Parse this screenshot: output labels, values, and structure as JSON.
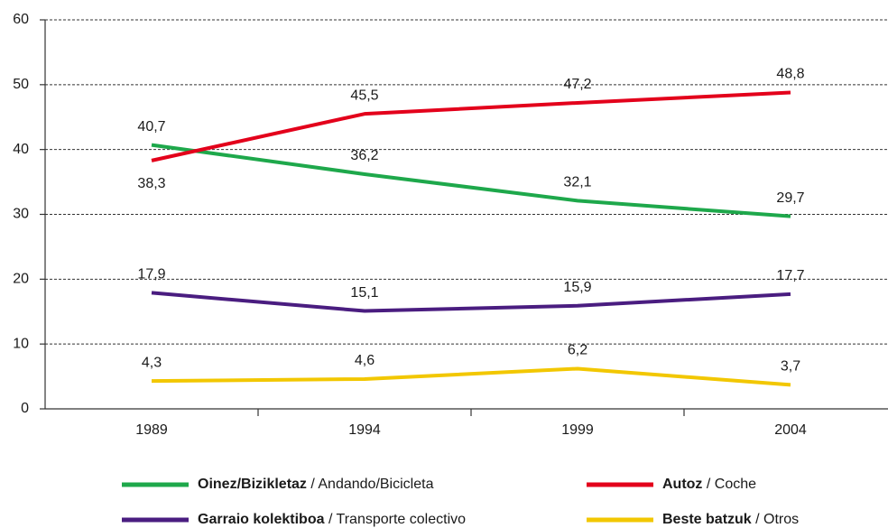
{
  "chart_data": {
    "type": "line",
    "categories": [
      "1989",
      "1994",
      "1999",
      "2004"
    ],
    "series": [
      {
        "name": "Oinez/Bizikletaz / Andando/Bicicleta",
        "color": "#1ea84b",
        "values": [
          40.7,
          36.2,
          32.1,
          29.7
        ],
        "value_labels": [
          "40,7",
          "36,2",
          "32,1",
          "29,7"
        ]
      },
      {
        "name": "Autoz / Coche",
        "color": "#e3001b",
        "values": [
          38.3,
          45.5,
          47.2,
          48.8
        ],
        "value_labels": [
          "38,3",
          "45,5",
          "47,2",
          "48,8"
        ]
      },
      {
        "name": "Garraio kolektiboa / Transporte colectivo",
        "color": "#4a1d80",
        "values": [
          17.9,
          15.1,
          15.9,
          17.7
        ],
        "value_labels": [
          "17,9",
          "15,1",
          "15,9",
          "17,7"
        ]
      },
      {
        "name": "Beste batzuk / Otros",
        "color": "#f2c700",
        "values": [
          4.3,
          4.6,
          6.2,
          3.7
        ],
        "value_labels": [
          "4,3",
          "4,6",
          "6,2",
          "3,7"
        ]
      }
    ],
    "ylim": [
      0,
      60
    ],
    "yticks": [
      0,
      10,
      20,
      30,
      40,
      50,
      60
    ],
    "grid": true
  }
}
